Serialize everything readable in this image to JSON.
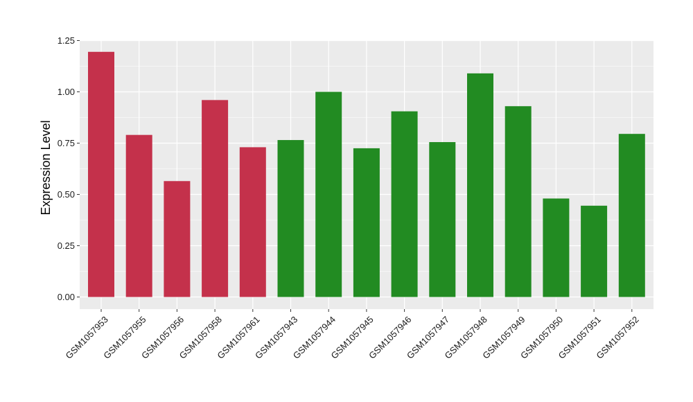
{
  "chart_data": {
    "type": "bar",
    "title": "",
    "xlabel": "",
    "ylabel": "Expression Level",
    "ylim": [
      0,
      1.25
    ],
    "yticks": [
      "0.00",
      "0.25",
      "0.50",
      "0.75",
      "1.00",
      "1.25"
    ],
    "grid": true,
    "legend": "none",
    "categories": [
      "GSM1057953",
      "GSM1057955",
      "GSM1057956",
      "GSM1057958",
      "GSM1057961",
      "GSM1057943",
      "GSM1057944",
      "GSM1057945",
      "GSM1057946",
      "GSM1057947",
      "GSM1057948",
      "GSM1057949",
      "GSM1057950",
      "GSM1057951",
      "GSM1057952"
    ],
    "values": [
      1.195,
      0.79,
      0.565,
      0.96,
      0.73,
      0.765,
      1.0,
      0.725,
      0.905,
      0.755,
      1.09,
      0.93,
      0.48,
      0.445,
      0.795
    ],
    "bar_colors": [
      "#c4314b",
      "#c4314b",
      "#c4314b",
      "#c4314b",
      "#c4314b",
      "#228b22",
      "#228b22",
      "#228b22",
      "#228b22",
      "#228b22",
      "#228b22",
      "#228b22",
      "#228b22",
      "#228b22",
      "#228b22"
    ],
    "panel_background": "#ebebeb",
    "grid_color": "#ffffff"
  }
}
